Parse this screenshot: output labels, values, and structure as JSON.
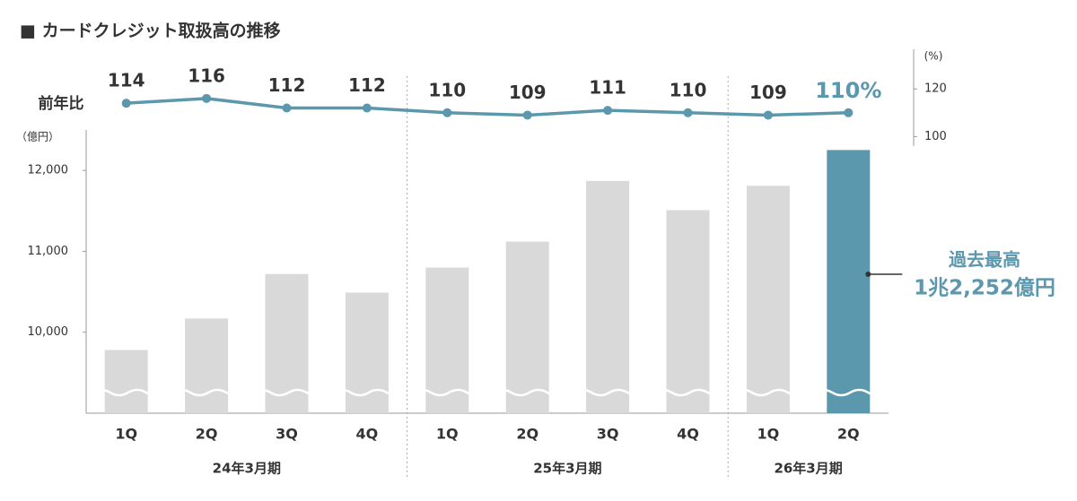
{
  "chart_data": {
    "type": "bar",
    "title": "■ カードクレジット取扱高の推移",
    "y_label": "（億円）",
    "y2_label": "(%)",
    "groups": [
      {
        "name": "24年3月期",
        "categories": [
          "1Q",
          "2Q",
          "3Q",
          "4Q"
        ]
      },
      {
        "name": "25年3月期",
        "categories": [
          "1Q",
          "2Q",
          "3Q",
          "4Q"
        ]
      },
      {
        "name": "26年3月期",
        "categories": [
          "1Q",
          "2Q"
        ]
      }
    ],
    "series": [
      {
        "type": "bar",
        "values": [
          9780,
          10170,
          10720,
          10490,
          10800,
          11120,
          11870,
          11510,
          11810,
          12252
        ],
        "colors": [
          "#d9d9d9",
          "#d9d9d9",
          "#d9d9d9",
          "#d9d9d9",
          "#d9d9d9",
          "#d9d9d9",
          "#d9d9d9",
          "#d9d9d9",
          "#d9d9d9",
          "#5b97ad"
        ]
      },
      {
        "type": "line",
        "name": "前年比",
        "axis": "y2",
        "color": "#5b97ad",
        "values": [
          114,
          116,
          112,
          112,
          110,
          109,
          111,
          110,
          109,
          110
        ],
        "value_labels": [
          "114",
          "116",
          "112",
          "112",
          "110",
          "109",
          "111",
          "110",
          "109",
          "110%"
        ]
      }
    ],
    "ylim": [
      9000,
      12500
    ],
    "yticks": [
      {
        "value": 10000,
        "label": "10,000"
      },
      {
        "value": 11000,
        "label": "11,000"
      },
      {
        "value": 12000,
        "label": "12,000"
      }
    ],
    "y2lim": [
      96,
      134
    ],
    "y2ticks": [
      100,
      120
    ],
    "annotation": {
      "title": "過去最高",
      "text": "1兆2,252億円"
    }
  }
}
